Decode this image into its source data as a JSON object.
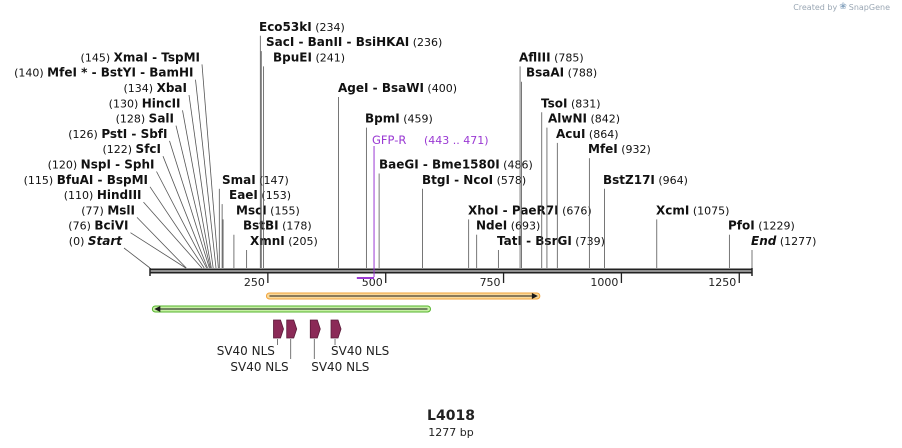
{
  "header": {
    "credit": "Created by",
    "brand": "SnapGene"
  },
  "plasmid": {
    "name": "L4018",
    "length_label": "1277 bp",
    "length": 1277
  },
  "colors": {
    "backbone": "#222222",
    "site_line": "#555555",
    "primer": "#9a39d3",
    "feature_orange": "#f2a33a",
    "feature_orange_fill": "#f9d99a",
    "feature_green": "#55b42c",
    "feature_green_fill": "#c8f0a6",
    "nls": "#8b2a57"
  },
  "ticks": [
    250,
    500,
    750,
    1000,
    1250
  ],
  "sites": [
    {
      "label": "Start",
      "pos": 0,
      "num": "(0)",
      "side": "left",
      "italic": true,
      "row": 0
    },
    {
      "label": "BciVI",
      "pos": 76,
      "num": "(76)",
      "side": "left",
      "row": 1
    },
    {
      "label": "MslI",
      "pos": 77,
      "num": "(77)",
      "side": "left",
      "row": 2
    },
    {
      "label": "HindIII",
      "pos": 110,
      "num": "(110)",
      "side": "left",
      "row": 3
    },
    {
      "label": "BfuAI  -  BspMI",
      "pos": 115,
      "num": "(115)",
      "side": "left",
      "row": 4
    },
    {
      "label": "NspI  -  SphI",
      "pos": 120,
      "num": "(120)",
      "side": "left",
      "row": 5
    },
    {
      "label": "SfcI",
      "pos": 122,
      "num": "(122)",
      "side": "left",
      "row": 6
    },
    {
      "label": "PstI  -  SbfI",
      "pos": 126,
      "num": "(126)",
      "side": "left",
      "row": 7
    },
    {
      "label": "SalI",
      "pos": 128,
      "num": "(128)",
      "side": "left",
      "row": 8
    },
    {
      "label": "HincII",
      "pos": 130,
      "num": "(130)",
      "side": "left",
      "row": 9
    },
    {
      "label": "XbaI",
      "pos": 134,
      "num": "(134)",
      "side": "left",
      "row": 10
    },
    {
      "label": "MfeI *  -  BstYI  -  BamHI",
      "pos": 140,
      "num": "(140)",
      "side": "left",
      "row": 11
    },
    {
      "label": "XmaI  -  TspMI",
      "pos": 145,
      "num": "(145)",
      "side": "left",
      "row": 12
    },
    {
      "label": "XmnI",
      "pos": 205,
      "num": "(205)",
      "side": "right",
      "labelX": 250,
      "row": 0
    },
    {
      "label": "BstBI",
      "pos": 178,
      "num": "(178)",
      "side": "right",
      "labelX": 243,
      "row": 1
    },
    {
      "label": "MscI",
      "pos": 155,
      "num": "(155)",
      "side": "right",
      "labelX": 236,
      "row": 2
    },
    {
      "label": "EaeI",
      "pos": 153,
      "num": "(153)",
      "side": "right",
      "labelX": 229,
      "row": 3
    },
    {
      "label": "SmaI",
      "pos": 147,
      "num": "(147)",
      "side": "right",
      "labelX": 222,
      "row": 4
    },
    {
      "label": "BpuEI",
      "pos": 241,
      "num": "(241)",
      "side": "right",
      "labelX": 273,
      "row": 12
    },
    {
      "label": "SacI  -  BanII  -  BsiHKAI",
      "pos": 236,
      "num": "(236)",
      "side": "right",
      "labelX": 266,
      "row": 13
    },
    {
      "label": "Eco53kI",
      "pos": 234,
      "num": "(234)",
      "side": "right",
      "labelX": 259,
      "row": 14
    },
    {
      "label": "AgeI  -  BsaWI",
      "pos": 400,
      "num": "(400)",
      "side": "right",
      "labelX": 338,
      "row": 10
    },
    {
      "label": "BpmI",
      "pos": 459,
      "num": "(459)",
      "side": "right",
      "labelX": 365,
      "row": 8
    },
    {
      "label": "BaeGI  -  Bme1580I",
      "pos": 486,
      "num": "(486)",
      "side": "right",
      "labelX": 379,
      "row": 5
    },
    {
      "label": "BtgI  -  NcoI",
      "pos": 578,
      "num": "(578)",
      "side": "right",
      "labelX": 422,
      "row": 4
    },
    {
      "label": "XhoI  -  PaeR7I",
      "pos": 676,
      "num": "(676)",
      "side": "right",
      "labelX": 468,
      "row": 2
    },
    {
      "label": "NdeI",
      "pos": 693,
      "num": "(693)",
      "side": "right",
      "labelX": 476,
      "row": 1
    },
    {
      "label": "TatI  -  BsrGI",
      "pos": 739,
      "num": "(739)",
      "side": "right",
      "labelX": 497,
      "row": 0
    },
    {
      "label": "AflIII",
      "pos": 785,
      "num": "(785)",
      "side": "right",
      "labelX": 519,
      "row": 12
    },
    {
      "label": "BsaAI",
      "pos": 788,
      "num": "(788)",
      "side": "right",
      "labelX": 526,
      "row": 11
    },
    {
      "label": "TsoI",
      "pos": 831,
      "num": "(831)",
      "side": "right",
      "labelX": 541,
      "row": 9
    },
    {
      "label": "AlwNI",
      "pos": 842,
      "num": "(842)",
      "side": "right",
      "labelX": 548,
      "row": 8
    },
    {
      "label": "AcuI",
      "pos": 864,
      "num": "(864)",
      "side": "right",
      "labelX": 556,
      "row": 7
    },
    {
      "label": "MfeI",
      "pos": 932,
      "num": "(932)",
      "side": "right",
      "labelX": 588,
      "row": 6
    },
    {
      "label": "BstZ17I",
      "pos": 964,
      "num": "(964)",
      "side": "right",
      "labelX": 603,
      "row": 4
    },
    {
      "label": "XcmI",
      "pos": 1075,
      "num": "(1075)",
      "side": "right",
      "labelX": 656,
      "row": 2
    },
    {
      "label": "PfoI",
      "pos": 1229,
      "num": "(1229)",
      "side": "right",
      "labelX": 728,
      "row": 1
    },
    {
      "label": "End",
      "pos": 1277,
      "num": "(1277)",
      "side": "right",
      "italic": true,
      "labelX": 751,
      "row": 0
    }
  ],
  "primer": {
    "label": "GFP-R",
    "range": "(443 .. 471)",
    "start": 443,
    "end": 471
  },
  "features": [
    {
      "name": "orange-feature",
      "start": 247,
      "end": 827,
      "dir": "forward",
      "color": "orange"
    },
    {
      "name": "green-feature",
      "start": 5,
      "end": 595,
      "dir": "reverse",
      "color": "green"
    }
  ],
  "nls": [
    {
      "label": "SV40 NLS",
      "pos": 262,
      "labelPos": 265,
      "labelRow": 0,
      "anchor": "end"
    },
    {
      "label": "SV40 NLS",
      "pos": 290,
      "labelPos": 294,
      "labelRow": 1,
      "anchor": "end"
    },
    {
      "label": "SV40 NLS",
      "pos": 340,
      "labelPos": 342,
      "labelRow": 1,
      "anchor": "start"
    },
    {
      "label": "SV40 NLS",
      "pos": 384,
      "labelPos": 384,
      "labelRow": 0,
      "anchor": "start"
    }
  ]
}
